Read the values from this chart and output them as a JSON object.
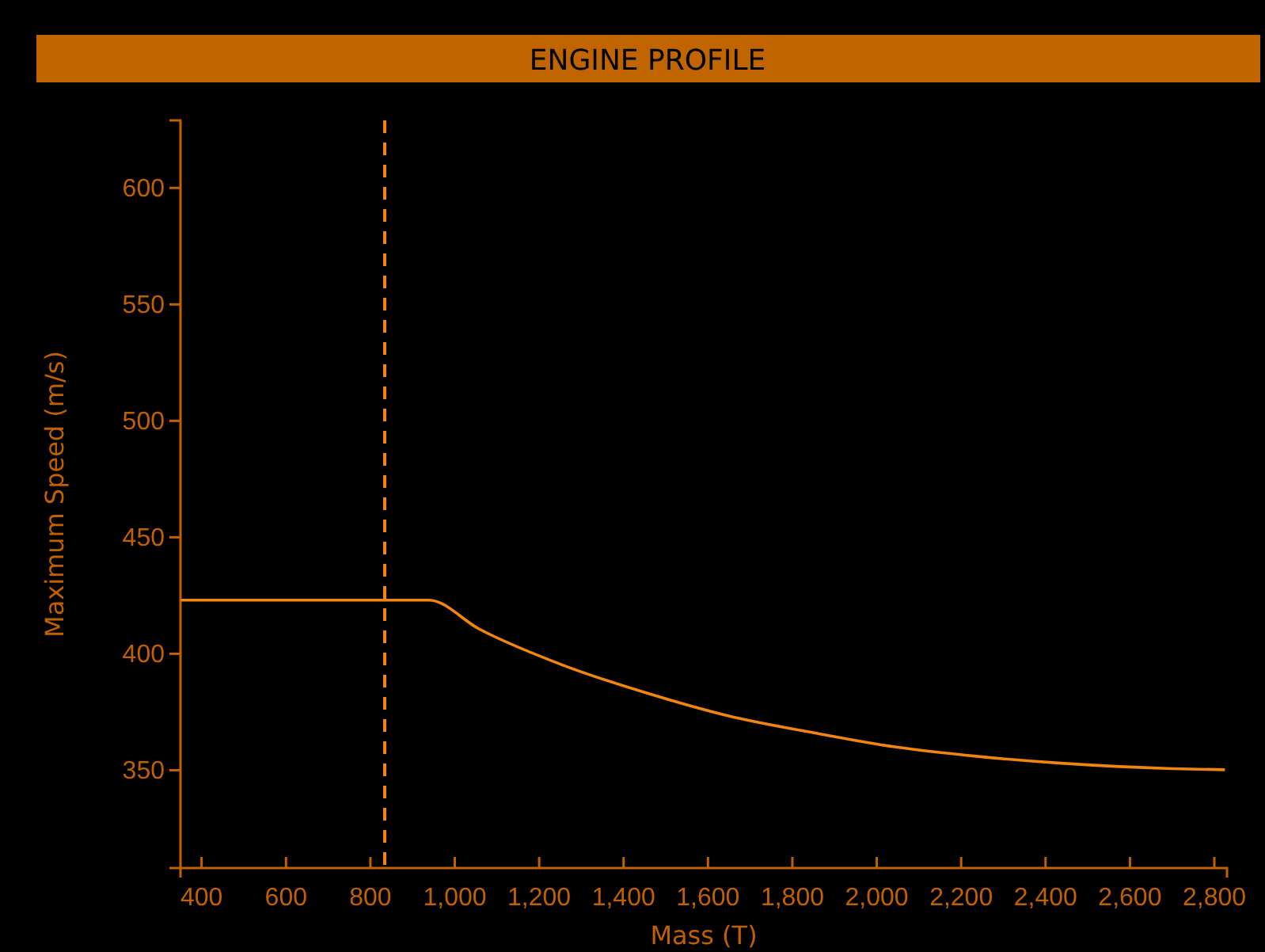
{
  "chart_data": {
    "type": "line",
    "title": "ENGINE PROFILE",
    "xlabel": "Mass (T)",
    "ylabel": "Maximum Speed (m/s)",
    "x": [
      351,
      600,
      800,
      939,
      1058,
      1255,
      1452,
      1649,
      1847,
      2043,
      2241,
      2437,
      2700,
      2825
    ],
    "values": [
      423,
      423,
      423,
      423,
      410.6,
      395.2,
      383.3,
      373.3,
      366.2,
      360,
      355.9,
      353,
      350.7,
      350.2
    ],
    "color": "#f0850f",
    "xlim": [
      350,
      2830
    ],
    "xticks": [
      400,
      600,
      800,
      {
        "value": 1000,
        "label": "1,000"
      },
      {
        "value": 1200,
        "label": "1,200"
      },
      {
        "value": 1400,
        "label": "1,400"
      },
      {
        "value": 1600,
        "label": "1,600"
      },
      {
        "value": 1800,
        "label": "1,800"
      },
      {
        "value": 2000,
        "label": "2,000"
      },
      {
        "value": 2200,
        "label": "2,200"
      },
      {
        "value": 2400,
        "label": "2,400"
      },
      {
        "value": 2600,
        "label": "2,600"
      },
      {
        "value": 2800,
        "label": "2,800"
      }
    ],
    "ylim": [
      308,
      629
    ],
    "yticks": [
      350,
      400,
      450,
      500,
      550,
      600
    ],
    "ref_lines": [
      {
        "axis": "x",
        "value": 834,
        "color": "#f0850f",
        "line_style": "dashed"
      }
    ],
    "grid": false,
    "marker": "none",
    "line_style": "solid"
  }
}
